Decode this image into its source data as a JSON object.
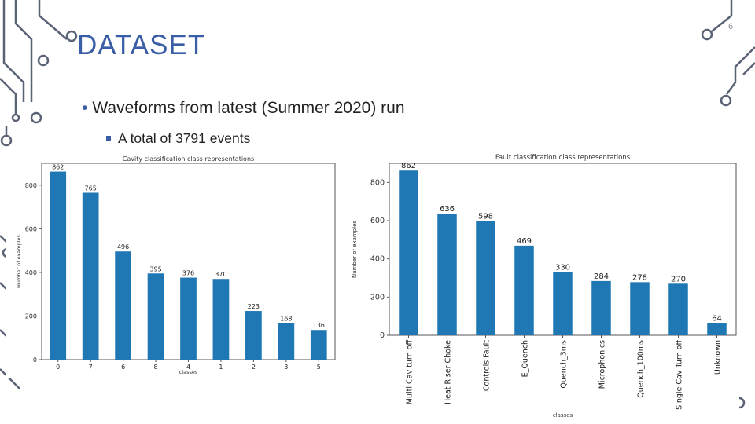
{
  "slide": {
    "number": "6",
    "title": "DATASET",
    "bullets": [
      "Waveforms from latest (Summer 2020) run",
      "A total of 3791 events"
    ]
  },
  "colors": {
    "accent": "#3a5ea6",
    "bar": "#1f77b4",
    "decoration": "#5a6375"
  },
  "chart_data": [
    {
      "type": "bar",
      "title": "Cavity classification class representations",
      "xlabel": "classes",
      "ylabel": "Number of examples",
      "categories": [
        "0",
        "7",
        "6",
        "8",
        "4",
        "1",
        "2",
        "3",
        "5"
      ],
      "values": [
        862,
        765,
        496,
        395,
        376,
        370,
        223,
        168,
        136
      ],
      "ylim": [
        0,
        900
      ],
      "yticks": [
        0,
        200,
        400,
        600,
        800
      ],
      "grid": false,
      "data_labels": true
    },
    {
      "type": "bar",
      "title": "Fault classification class representations",
      "xlabel": "classes",
      "ylabel": "Number of examples",
      "categories": [
        "Multi Cav turn off",
        "Heat Riser Choke",
        "Controls Fault",
        "E_Quench",
        "Quench_3ms",
        "Microphonics",
        "Quench_100ms",
        "Single Cav Turn off",
        "Unknown"
      ],
      "values": [
        862,
        636,
        598,
        469,
        330,
        284,
        278,
        270,
        64
      ],
      "ylim": [
        0,
        900
      ],
      "yticks": [
        0,
        200,
        400,
        600,
        800
      ],
      "grid": false,
      "data_labels": true
    }
  ]
}
